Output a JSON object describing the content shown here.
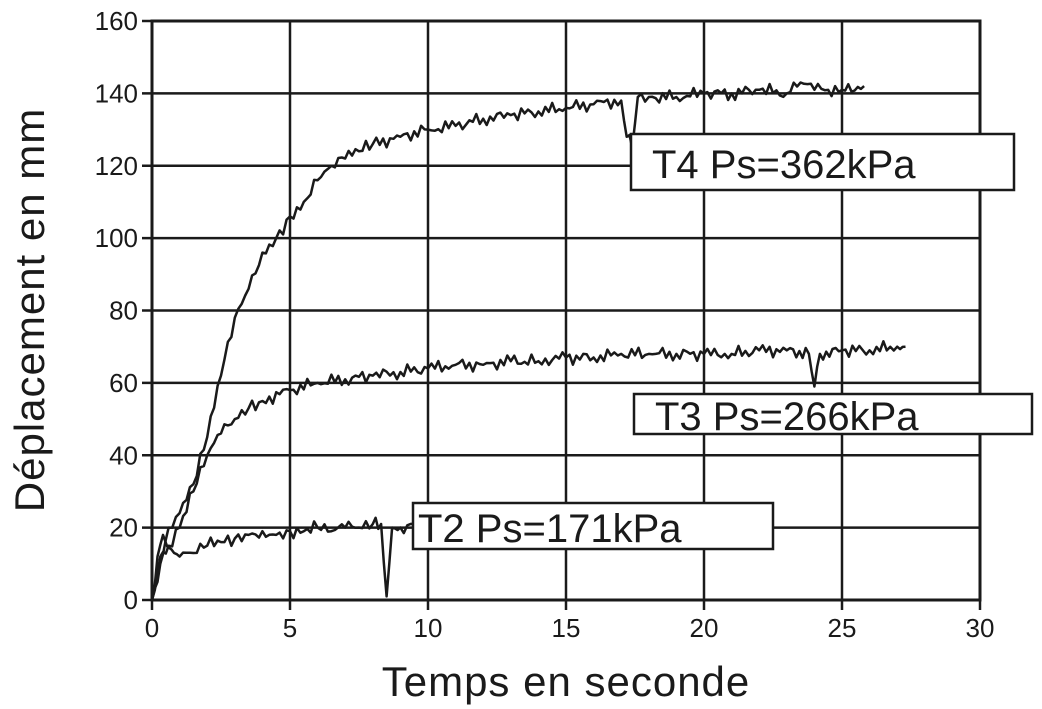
{
  "chart_data": {
    "type": "line",
    "title": "",
    "xlabel": "Temps en seconde",
    "ylabel": "Déplacement en mm",
    "xlim": [
      0,
      30
    ],
    "ylim": [
      0,
      160
    ],
    "xticks": [
      0,
      5,
      10,
      15,
      20,
      25,
      30
    ],
    "yticks": [
      0,
      20,
      40,
      60,
      80,
      100,
      120,
      140,
      160
    ],
    "grid": true,
    "legend": "inline labels",
    "colors": {
      "line": "#1a1a1a",
      "grid": "#1a1a1a",
      "background": "#ffffff"
    },
    "series": [
      {
        "name": "T4 Ps=362kPa",
        "x": [
          0,
          0.3,
          0.6,
          1,
          1.5,
          2,
          2.5,
          3,
          3.5,
          4,
          4.5,
          5,
          5.5,
          6,
          6.5,
          7,
          7.5,
          8,
          9,
          10,
          11,
          12,
          13,
          14,
          15,
          16,
          17,
          17.2,
          17.4,
          17.6,
          18,
          19,
          20,
          21,
          22,
          23,
          23.5,
          24,
          25,
          25.8
        ],
        "y": [
          0,
          10,
          20,
          24,
          32,
          45,
          62,
          78,
          86,
          96,
          100,
          106,
          110,
          116,
          120,
          122,
          124,
          126,
          128,
          130,
          131,
          133,
          134,
          135,
          136,
          137,
          138,
          128,
          125,
          139,
          139,
          139,
          140,
          140,
          141,
          140,
          143,
          141,
          141,
          142
        ]
      },
      {
        "name": "T3 Ps=266kPa",
        "x": [
          0,
          0.3,
          0.6,
          1,
          1.5,
          2,
          2.5,
          3,
          3.5,
          4,
          5,
          6,
          7,
          8,
          9,
          10,
          11,
          12,
          13,
          14,
          15,
          16,
          17,
          18,
          19,
          20,
          21,
          22,
          23,
          23.8,
          24,
          24.2,
          25,
          26,
          27,
          27.3
        ],
        "y": [
          0,
          12,
          15,
          20,
          30,
          40,
          46,
          50,
          53,
          55,
          58,
          60,
          61,
          62,
          63,
          64,
          65,
          65,
          66,
          66,
          67,
          67,
          68,
          68,
          68,
          68,
          68,
          69,
          69,
          68,
          59,
          68,
          69,
          69,
          70,
          70
        ]
      },
      {
        "name": "T2 Ps=171kPa",
        "x": [
          0,
          0.2,
          0.4,
          0.7,
          1,
          1.5,
          2,
          2.5,
          3,
          3.5,
          4,
          4.5,
          5,
          5.5,
          6,
          6.5,
          7,
          7.5,
          8,
          8.3,
          8.5,
          8.7,
          9,
          9.5
        ],
        "y": [
          0,
          12,
          18,
          14,
          12,
          13,
          15,
          16,
          17,
          18,
          19,
          18,
          19,
          19,
          20,
          19,
          20,
          20,
          21,
          21,
          1,
          20,
          20,
          21
        ]
      }
    ]
  },
  "labels": {
    "t4": "T4 Ps=362kPa",
    "t3": "T3 Ps=266kPa",
    "t2": "T2 Ps=171kPa"
  }
}
